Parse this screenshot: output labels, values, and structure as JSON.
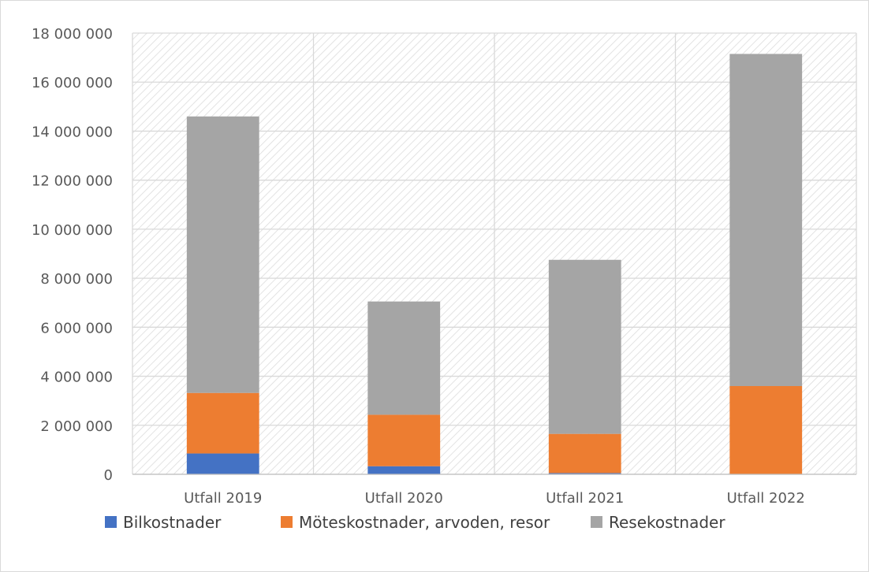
{
  "chart_data": {
    "type": "bar",
    "stacked": true,
    "title": "",
    "xlabel": "",
    "ylabel": "",
    "categories": [
      "Utfall 2019",
      "Utfall 2020",
      "Utfall 2021",
      "Utfall 2022"
    ],
    "series": [
      {
        "name": "Bilkostnader",
        "color": "#4472c4",
        "values": [
          850000,
          330000,
          50000,
          0
        ]
      },
      {
        "name": "Möteskostnader, arvoden, resor",
        "color": "#ed7d31",
        "values": [
          2470000,
          2100000,
          1600000,
          3600000
        ]
      },
      {
        "name": "Resekostnader",
        "color": "#a5a5a5",
        "values": [
          11280000,
          4620000,
          7100000,
          13550000
        ]
      }
    ],
    "ylim": [
      0,
      18000000
    ],
    "yticks": [
      0,
      2000000,
      4000000,
      6000000,
      8000000,
      10000000,
      12000000,
      14000000,
      16000000,
      18000000
    ],
    "ytick_labels": [
      "0",
      "2 000 000",
      "4 000 000",
      "6 000 000",
      "8 000 000",
      "10 000 000",
      "12 000 000",
      "14 000 000",
      "16 000 000",
      "18 000 000"
    ],
    "grid": true,
    "legend_position": "bottom",
    "plot_background": "hatched"
  }
}
